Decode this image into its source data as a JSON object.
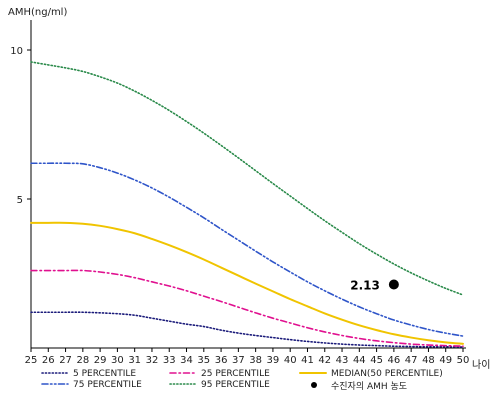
{
  "chart_data": {
    "type": "line",
    "ylabel": "AMH(ng/ml)",
    "xlabel": "나이",
    "xlim": [
      25,
      50
    ],
    "ylim": [
      0,
      11
    ],
    "x_ticks": [
      25,
      26,
      27,
      28,
      29,
      30,
      31,
      32,
      33,
      34,
      35,
      36,
      37,
      38,
      39,
      40,
      41,
      42,
      43,
      44,
      45,
      46,
      47,
      48,
      49,
      50
    ],
    "y_ticks": [
      5,
      10
    ],
    "x": [
      25,
      26,
      27,
      28,
      29,
      30,
      31,
      32,
      33,
      34,
      35,
      36,
      37,
      38,
      39,
      40,
      41,
      42,
      43,
      44,
      45,
      46,
      47,
      48,
      49,
      50
    ],
    "series": [
      {
        "name": "5 PERCENTILE",
        "color": "#1a1a7a",
        "dash": "dotted",
        "values": [
          1.2,
          1.2,
          1.2,
          1.2,
          1.18,
          1.15,
          1.1,
          1.0,
          0.9,
          0.8,
          0.72,
          0.6,
          0.5,
          0.42,
          0.35,
          0.28,
          0.22,
          0.17,
          0.13,
          0.1,
          0.08,
          0.06,
          0.05,
          0.04,
          0.04,
          0.03
        ]
      },
      {
        "name": "25 PERCENTILE",
        "color": "#e0108f",
        "dash": "dashdot",
        "values": [
          2.6,
          2.6,
          2.6,
          2.6,
          2.55,
          2.47,
          2.36,
          2.22,
          2.08,
          1.92,
          1.74,
          1.56,
          1.37,
          1.18,
          1.0,
          0.84,
          0.68,
          0.54,
          0.42,
          0.32,
          0.24,
          0.18,
          0.13,
          0.1,
          0.08,
          0.06
        ]
      },
      {
        "name": "MEDIAN(50 PERCENTILE)",
        "color": "#f0c400",
        "dash": "solid",
        "values": [
          4.2,
          4.2,
          4.2,
          4.17,
          4.1,
          3.99,
          3.85,
          3.66,
          3.45,
          3.22,
          2.97,
          2.7,
          2.43,
          2.16,
          1.9,
          1.64,
          1.4,
          1.16,
          0.95,
          0.76,
          0.6,
          0.46,
          0.35,
          0.26,
          0.19,
          0.14
        ]
      },
      {
        "name": "75 PERCENTILE",
        "color": "#2f55c9",
        "dash": "dashdotdot",
        "values": [
          6.2,
          6.2,
          6.2,
          6.18,
          6.05,
          5.87,
          5.64,
          5.37,
          5.06,
          4.72,
          4.37,
          3.99,
          3.62,
          3.25,
          2.89,
          2.55,
          2.22,
          1.92,
          1.64,
          1.38,
          1.15,
          0.94,
          0.77,
          0.62,
          0.5,
          0.4
        ]
      },
      {
        "name": "95 PERCENTILE",
        "color": "#2a8a4a",
        "dash": "dotted",
        "values": [
          9.6,
          9.5,
          9.4,
          9.28,
          9.1,
          8.89,
          8.62,
          8.31,
          7.97,
          7.6,
          7.21,
          6.8,
          6.38,
          5.95,
          5.52,
          5.1,
          4.68,
          4.27,
          3.88,
          3.5,
          3.15,
          2.82,
          2.52,
          2.25,
          2.0,
          1.78
        ]
      }
    ],
    "marker": {
      "name": "수진자의 AMH 농도",
      "x": 46,
      "y": 2.13,
      "label": "2.13",
      "color": "#000000"
    },
    "legend_position": "bottom",
    "grid": false
  }
}
